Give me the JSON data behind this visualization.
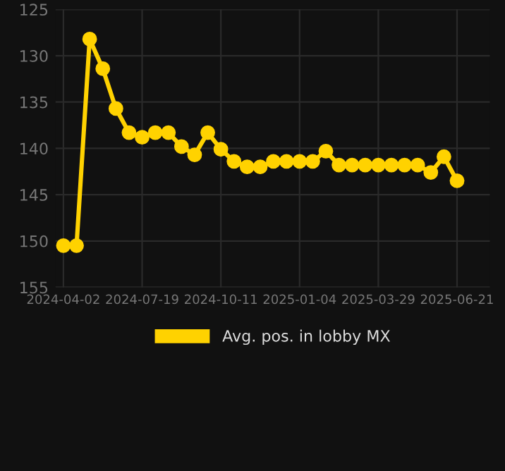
{
  "chart_data": {
    "type": "line",
    "categories": [
      "2024-04-02",
      null,
      null,
      null,
      null,
      null,
      "2024-07-19",
      null,
      null,
      null,
      null,
      null,
      "2024-10-11",
      null,
      null,
      null,
      null,
      null,
      "2025-01-04",
      null,
      null,
      null,
      null,
      null,
      "2025-03-29",
      null,
      null,
      null,
      null,
      null,
      "2025-06-21"
    ],
    "series": [
      {
        "name": "Avg. pos. in lobby MX",
        "color": "#ffd200",
        "values": [
          150.5,
          150.5,
          128.2,
          131.4,
          135.7,
          138.3,
          138.8,
          138.3,
          138.3,
          139.8,
          140.7,
          138.3,
          140.1,
          141.4,
          142.0,
          142.0,
          141.4,
          141.4,
          141.4,
          141.4,
          140.3,
          141.8,
          141.8,
          141.8,
          141.8,
          141.8,
          141.8,
          141.8,
          142.6,
          140.9,
          143.5
        ]
      }
    ],
    "ylim": [
      155,
      125
    ],
    "yticks": [
      125,
      130,
      135,
      140,
      145,
      150,
      155
    ],
    "grid": true,
    "legend": "bottom",
    "marker": "circle",
    "line_style": "solid"
  }
}
